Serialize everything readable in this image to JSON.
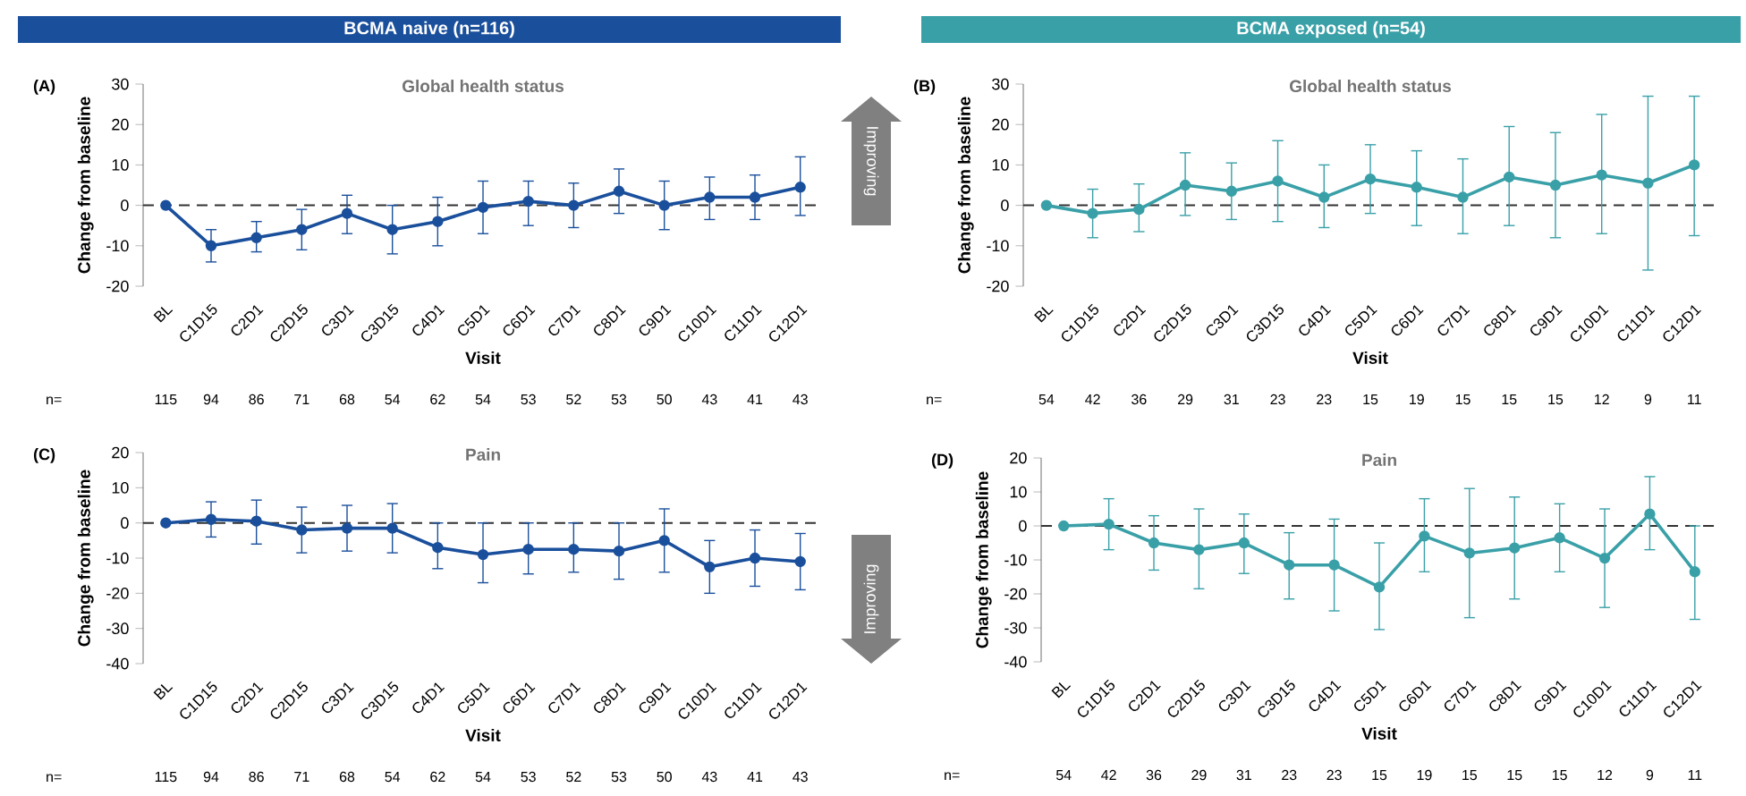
{
  "chart_data": [
    {
      "type": "line",
      "title": "Global health status",
      "subtitle": "BCMA naive (n=116)",
      "xlabel": "Visit",
      "ylabel": "Change from baseline",
      "categories": [
        "BL",
        "C1D15",
        "C2D1",
        "C2D15",
        "C3D1",
        "C3D15",
        "C4D1",
        "C5D1",
        "C6D1",
        "C7D1",
        "C8D1",
        "C9D1",
        "C10D1",
        "C11D1",
        "C12D1"
      ],
      "series": [
        {
          "color": "#1a4f9c",
          "values": [
            0,
            -10,
            -8,
            -6,
            -2,
            -6,
            -4,
            -0.5,
            1,
            0,
            3.5,
            0,
            2,
            2,
            4.5
          ],
          "errors": [
            null,
            [
              -14,
              -6
            ],
            [
              -11.5,
              -4
            ],
            [
              -11,
              -1
            ],
            [
              -7,
              2.5
            ],
            [
              -12,
              0
            ],
            [
              -10,
              2
            ],
            [
              -7,
              6
            ],
            [
              -5,
              6
            ],
            [
              -5.5,
              5.5
            ],
            [
              -2,
              9
            ],
            [
              -6,
              6
            ],
            [
              -3.5,
              7
            ],
            [
              -3.5,
              7.5
            ],
            [
              -2.5,
              12
            ]
          ]
        }
      ],
      "ylim": [
        -20,
        30
      ],
      "yticks": [
        -20,
        -10,
        0,
        10,
        20,
        30
      ],
      "ref_lines": [
        {
          "axis": "y",
          "value": 0,
          "line_style": "dashed",
          "color": "#333333"
        }
      ],
      "marker": "circle",
      "line_style": "solid",
      "annotations": [
        "(A)",
        "n=",
        "115",
        "94",
        "86",
        "71",
        "68",
        "54",
        "62",
        "54",
        "53",
        "52",
        "53",
        "50",
        "43",
        "41",
        "43",
        "Improving"
      ]
    },
    {
      "type": "line",
      "title": "Global health status",
      "subtitle": "BCMA exposed (n=54)",
      "xlabel": "Visit",
      "ylabel": "Change from baseline",
      "categories": [
        "BL",
        "C1D15",
        "C2D1",
        "C2D15",
        "C3D1",
        "C3D15",
        "C4D1",
        "C5D1",
        "C6D1",
        "C7D1",
        "C8D1",
        "C9D1",
        "C10D1",
        "C11D1",
        "C12D1"
      ],
      "series": [
        {
          "color": "#3aa0a8",
          "values": [
            0,
            -2,
            -1,
            5,
            3.5,
            6,
            2,
            6.5,
            4.5,
            2,
            7,
            5,
            7.5,
            5.5,
            10
          ],
          "errors": [
            null,
            [
              -8,
              4
            ],
            [
              -6.5,
              5.3
            ],
            [
              -2.5,
              13
            ],
            [
              -3.5,
              10.5
            ],
            [
              -4,
              16
            ],
            [
              -5.5,
              10
            ],
            [
              -2,
              15
            ],
            [
              -5,
              13.5
            ],
            [
              -7,
              11.5
            ],
            [
              -5,
              19.5
            ],
            [
              -8,
              18
            ],
            [
              -7,
              22.5
            ],
            [
              -16,
              27
            ],
            [
              -7.5,
              27
            ]
          ]
        }
      ],
      "ylim": [
        -20,
        30
      ],
      "yticks": [
        -20,
        -10,
        0,
        10,
        20,
        30
      ],
      "ref_lines": [
        {
          "axis": "y",
          "value": 0,
          "line_style": "dashed",
          "color": "#333333"
        }
      ],
      "marker": "circle",
      "line_style": "solid",
      "annotations": [
        "(B)",
        "n=",
        "54",
        "42",
        "36",
        "29",
        "31",
        "23",
        "23",
        "15",
        "19",
        "15",
        "15",
        "15",
        "12",
        "9",
        "11"
      ]
    },
    {
      "type": "line",
      "title": "Pain",
      "xlabel": "Visit",
      "ylabel": "Change from baseline",
      "categories": [
        "BL",
        "C1D15",
        "C2D1",
        "C2D15",
        "C3D1",
        "C3D15",
        "C4D1",
        "C5D1",
        "C6D1",
        "C7D1",
        "C8D1",
        "C9D1",
        "C10D1",
        "C11D1",
        "C12D1"
      ],
      "series": [
        {
          "color": "#1a4f9c",
          "values": [
            0,
            1,
            0.5,
            -2,
            -1.5,
            -1.5,
            -7,
            -9,
            -7.5,
            -7.5,
            -8,
            -5,
            -12.5,
            -10,
            -11
          ],
          "errors": [
            null,
            [
              -4,
              6
            ],
            [
              -6,
              6.5
            ],
            [
              -8.5,
              4.5
            ],
            [
              -8,
              5
            ],
            [
              -8.5,
              5.5
            ],
            [
              -13,
              0
            ],
            [
              -17,
              0
            ],
            [
              -14.5,
              0
            ],
            [
              -14,
              0
            ],
            [
              -16,
              0
            ],
            [
              -14,
              4
            ],
            [
              -20,
              -5
            ],
            [
              -18,
              -2
            ],
            [
              -19,
              -3
            ]
          ]
        }
      ],
      "ylim": [
        -40,
        20
      ],
      "yticks": [
        -40,
        -30,
        -20,
        -10,
        0,
        10,
        20
      ],
      "ref_lines": [
        {
          "axis": "y",
          "value": 0,
          "line_style": "dashed",
          "color": "#333333"
        }
      ],
      "marker": "circle",
      "line_style": "solid",
      "annotations": [
        "(C)",
        "n=",
        "115",
        "94",
        "86",
        "71",
        "68",
        "54",
        "62",
        "54",
        "53",
        "52",
        "53",
        "50",
        "43",
        "41",
        "43",
        "Improving"
      ]
    },
    {
      "type": "line",
      "title": "Pain",
      "xlabel": "Visit",
      "ylabel": "Change from baseline",
      "categories": [
        "BL",
        "C1D15",
        "C2D1",
        "C2D15",
        "C3D1",
        "C3D15",
        "C4D1",
        "C5D1",
        "C6D1",
        "C7D1",
        "C8D1",
        "C9D1",
        "C10D1",
        "C11D1",
        "C12D1"
      ],
      "series": [
        {
          "color": "#3aa0a8",
          "values": [
            0,
            0.5,
            -5,
            -7,
            -5,
            -11.5,
            -11.5,
            -18,
            -3,
            -8,
            -6.5,
            -3.5,
            -9.5,
            3.5,
            -13.5
          ],
          "errors": [
            null,
            [
              -7,
              8
            ],
            [
              -13,
              3
            ],
            [
              -18.5,
              5
            ],
            [
              -14,
              3.5
            ],
            [
              -21.5,
              -2
            ],
            [
              -25,
              2
            ],
            [
              -30.5,
              -5
            ],
            [
              -13.5,
              8
            ],
            [
              -27,
              11
            ],
            [
              -21.5,
              8.5
            ],
            [
              -13.5,
              6.5
            ],
            [
              -24,
              5
            ],
            [
              -7,
              14.5
            ],
            [
              -27.5,
              0
            ]
          ]
        }
      ],
      "ylim": [
        -40,
        20
      ],
      "yticks": [
        -40,
        -30,
        -20,
        -10,
        0,
        10,
        20
      ],
      "ref_lines": [
        {
          "axis": "y",
          "value": 0,
          "line_style": "dashed",
          "color": "#333333"
        }
      ],
      "marker": "circle",
      "line_style": "solid",
      "annotations": [
        "(D)",
        "n=",
        "54",
        "42",
        "36",
        "29",
        "31",
        "23",
        "23",
        "15",
        "19",
        "15",
        "15",
        "15",
        "12",
        "9",
        "11"
      ]
    }
  ]
}
